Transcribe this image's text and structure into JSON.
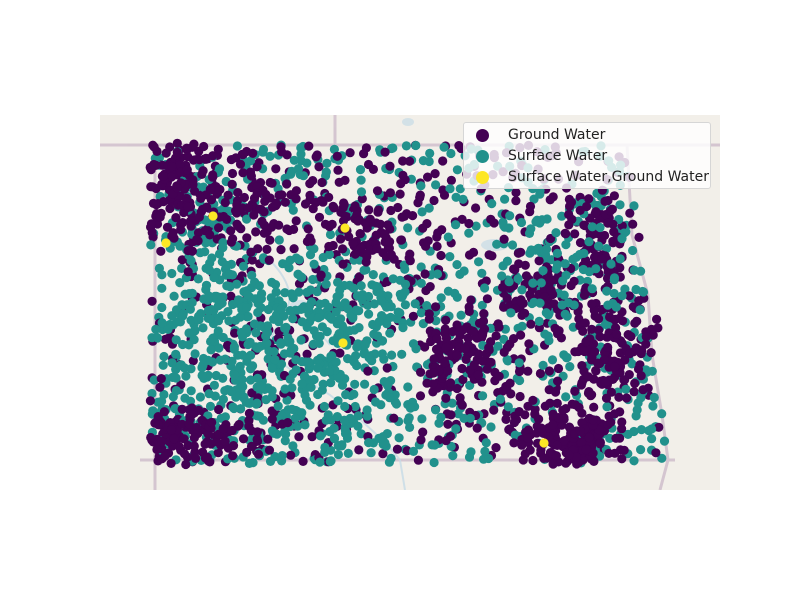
{
  "map": {
    "basemap_background": "#f2efe9",
    "state_border_color": "#cbb8c8",
    "water_color": "#c6dbe6"
  },
  "legend": {
    "placement": "top-right",
    "items": [
      {
        "label": "Ground Water",
        "color": "#440154"
      },
      {
        "label": "Surface Water",
        "color": "#21918c"
      },
      {
        "label": "Surface Water,Ground Water",
        "color": "#fde725"
      }
    ]
  },
  "chart_data": {
    "type": "scatter",
    "title": "",
    "xlabel": "",
    "ylabel": "",
    "grid": false,
    "legend_position": "top-right",
    "series": [
      {
        "name": "Ground Water",
        "color": "#440154"
      },
      {
        "name": "Surface Water",
        "color": "#21918c"
      },
      {
        "name": "Surface Water,Ground Water",
        "color": "#fde725"
      }
    ]
  }
}
